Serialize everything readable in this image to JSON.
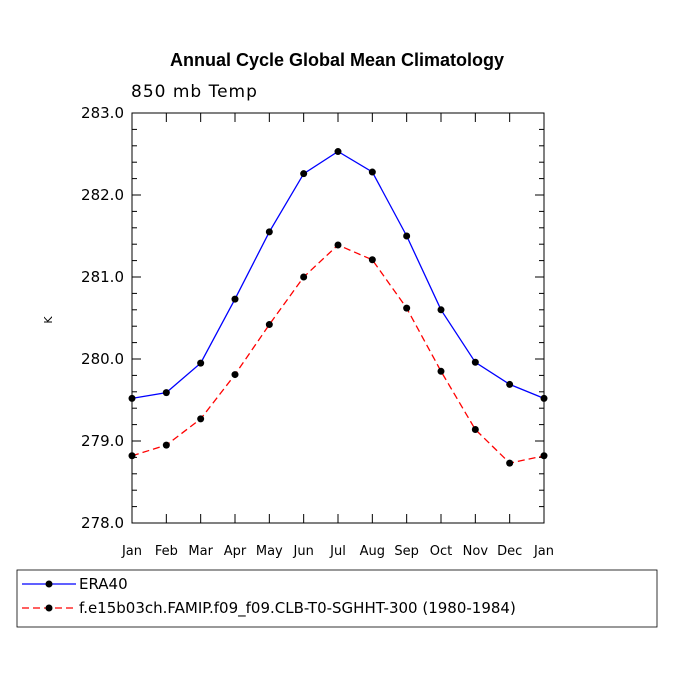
{
  "chart_data": {
    "type": "line",
    "title": "Annual Cycle Global Mean Climatology",
    "subtitle": "850 mb Temp",
    "xlabel": "",
    "ylabel": "K",
    "categories": [
      "Jan",
      "Feb",
      "Mar",
      "Apr",
      "May",
      "Jun",
      "Jul",
      "Aug",
      "Sep",
      "Oct",
      "Nov",
      "Dec",
      "Jan"
    ],
    "ylim": [
      278.0,
      283.0
    ],
    "yticks": [
      "278.0",
      "279.0",
      "280.0",
      "281.0",
      "282.0",
      "283.0"
    ],
    "series": [
      {
        "name": "ERA40",
        "color": "#0000ff",
        "dash": "solid",
        "values": [
          279.52,
          279.59,
          279.95,
          280.73,
          281.55,
          282.26,
          282.53,
          282.28,
          281.5,
          280.6,
          279.96,
          279.69,
          279.52
        ]
      },
      {
        "name": "f.e15b03ch.FAMIP.f09_f09.CLB-T0-SGHHT-300 (1980-1984)",
        "color": "#ff0000",
        "dash": "dashed",
        "values": [
          278.82,
          278.95,
          279.27,
          279.81,
          280.42,
          281.0,
          281.39,
          281.21,
          280.62,
          279.85,
          279.14,
          278.73,
          278.82
        ]
      }
    ]
  }
}
